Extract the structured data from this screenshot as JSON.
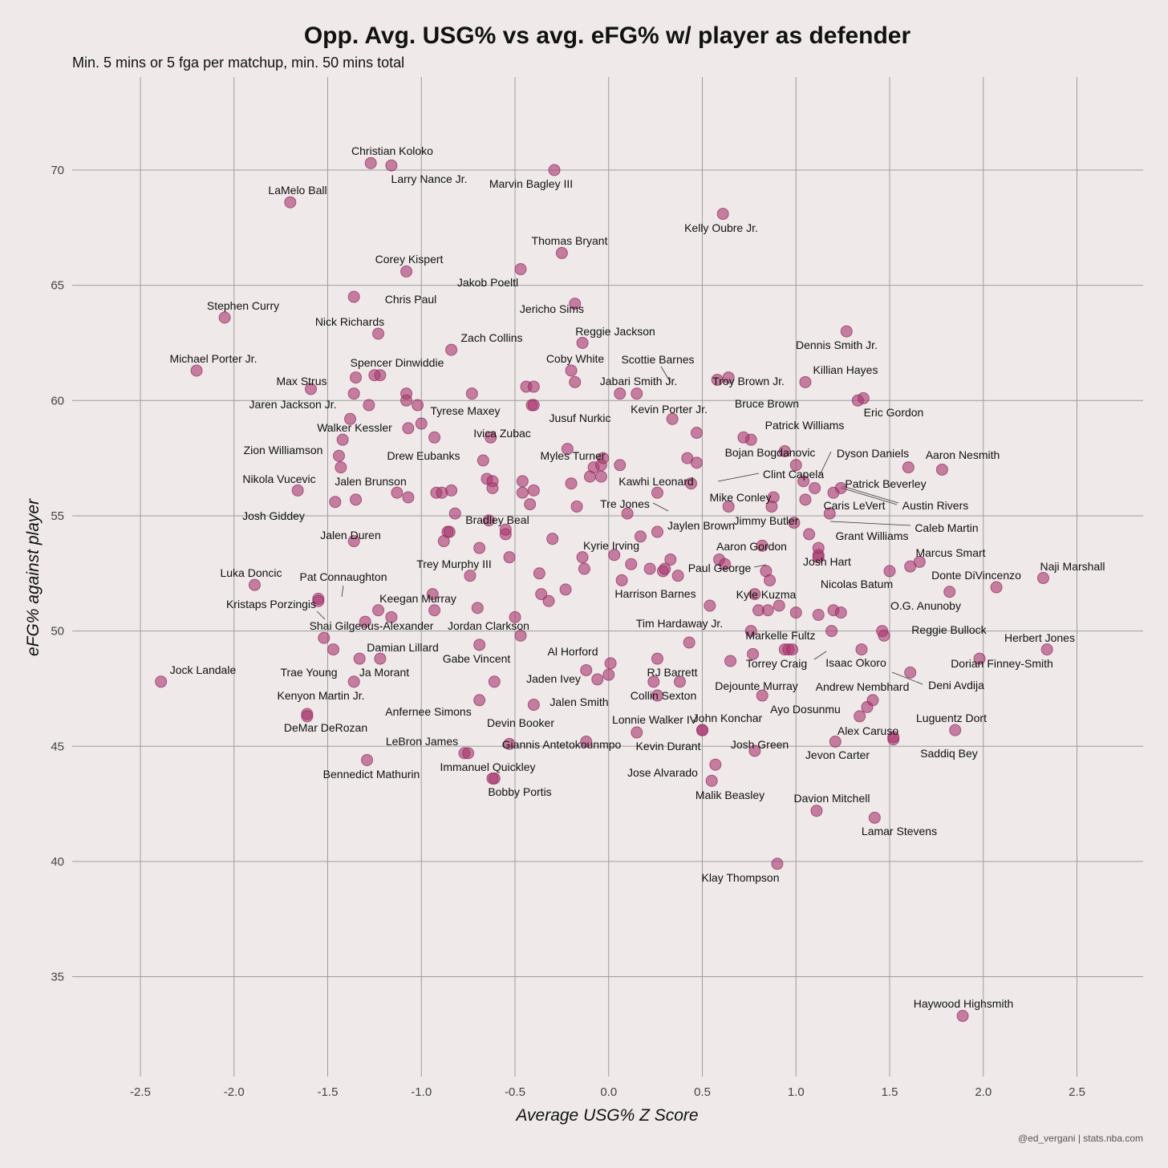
{
  "chart_data": {
    "type": "scatter",
    "title": "Opp. Avg. USG% vs avg. eFG% w/ player as defender",
    "subtitle": "Min. 5 mins or 5 fga per matchup, min. 50 mins total",
    "xlabel": "Average USG% Z Score",
    "ylabel": "eFG% against player",
    "caption": "@ed_vergani | stats.nba.com",
    "xlim": [
      -2.85,
      2.85
    ],
    "ylim": [
      30.9,
      73
    ],
    "x_ticks": [
      -2.5,
      -2.0,
      -1.5,
      -1.0,
      -0.5,
      0.0,
      0.5,
      1.0,
      1.5,
      2.0,
      2.5
    ],
    "x_tick_labels": [
      "-2.5",
      "-2.0",
      "-1.5",
      "-1.0",
      "-0.5",
      "0.0",
      "0.5",
      "1.0",
      "1.5",
      "2.0",
      "2.5"
    ],
    "y_ticks": [
      35,
      40,
      45,
      50,
      55,
      60,
      65,
      70
    ],
    "y_tick_labels": [
      "35",
      "40",
      "45",
      "50",
      "55",
      "60",
      "65",
      "70"
    ],
    "grid": true,
    "point_color": "#a8356e",
    "background": "#efe9e9",
    "labeled_points": [
      {
        "name": "Christian Koloko",
        "x": -1.27,
        "y": 70.3
      },
      {
        "name": "Larry Nance Jr.",
        "x": -1.16,
        "y": 70.2
      },
      {
        "name": "Marvin Bagley III",
        "x": -0.29,
        "y": 70.0
      },
      {
        "name": "LaMelo Ball",
        "x": -1.7,
        "y": 68.6
      },
      {
        "name": "Kelly Oubre Jr.",
        "x": 0.61,
        "y": 68.1
      },
      {
        "name": "Thomas Bryant",
        "x": -0.25,
        "y": 66.4
      },
      {
        "name": "Corey Kispert",
        "x": -1.08,
        "y": 65.6
      },
      {
        "name": "Jakob Poeltl",
        "x": -0.47,
        "y": 65.7
      },
      {
        "name": "Chris Paul",
        "x": -1.36,
        "y": 64.5
      },
      {
        "name": "Jericho Sims",
        "x": -0.18,
        "y": 64.2
      },
      {
        "name": "Stephen Curry",
        "x": -2.05,
        "y": 63.6
      },
      {
        "name": "Nick Richards",
        "x": -1.23,
        "y": 62.9
      },
      {
        "name": "Reggie Jackson",
        "x": -0.14,
        "y": 62.5
      },
      {
        "name": "Zach Collins",
        "x": -0.84,
        "y": 62.2
      },
      {
        "name": "Dennis Smith Jr.",
        "x": 1.27,
        "y": 63.0
      },
      {
        "name": "Michael Porter Jr.",
        "x": -2.2,
        "y": 61.3
      },
      {
        "name": "Spencer Dinwiddie",
        "x": -1.25,
        "y": 61.1
      },
      {
        "name": "Coby White",
        "x": -0.2,
        "y": 61.3
      },
      {
        "name": "Scottie Barnes",
        "x": 0.15,
        "y": 60.3
      },
      {
        "name": "Jabari Smith Jr.",
        "x": 0.06,
        "y": 60.3
      },
      {
        "name": "Troy Brown Jr.",
        "x": 0.64,
        "y": 61.0
      },
      {
        "name": "Killian Hayes",
        "x": 1.05,
        "y": 60.8
      },
      {
        "name": "Max Strus",
        "x": -1.59,
        "y": 60.5
      },
      {
        "name": "Jaren Jackson Jr.",
        "x": -1.36,
        "y": 60.3
      },
      {
        "name": "Tyrese Maxey",
        "x": -1.0,
        "y": 59.0
      },
      {
        "name": "Bruce Brown",
        "x": 1.36,
        "y": 60.1
      },
      {
        "name": "Eric Gordon",
        "x": 1.33,
        "y": 60.0
      },
      {
        "name": "Kevin Porter Jr.",
        "x": 0.34,
        "y": 59.2
      },
      {
        "name": "Jusuf Nurkic",
        "x": -0.4,
        "y": 59.8
      },
      {
        "name": "Walker Kessler",
        "x": -1.42,
        "y": 58.3
      },
      {
        "name": "Ivica Zubac",
        "x": -0.63,
        "y": 58.4
      },
      {
        "name": "Patrick Williams",
        "x": 0.72,
        "y": 58.4
      },
      {
        "name": "Zion Williamson",
        "x": -1.44,
        "y": 57.6
      },
      {
        "name": "Drew Eubanks",
        "x": -0.67,
        "y": 57.4
      },
      {
        "name": "Myles Turner",
        "x": -0.22,
        "y": 57.9
      },
      {
        "name": "Bojan Bogdanovic",
        "x": 0.94,
        "y": 57.8
      },
      {
        "name": "Dyson Daniels",
        "x": 1.04,
        "y": 56.5
      },
      {
        "name": "Aaron Nesmith",
        "x": 1.78,
        "y": 57.0
      },
      {
        "name": "Clint Capela",
        "x": 0.44,
        "y": 56.4
      },
      {
        "name": "Kawhi Leonard",
        "x": 0.26,
        "y": 56.0
      },
      {
        "name": "Nikola Vucevic",
        "x": -1.66,
        "y": 56.1
      },
      {
        "name": "Jalen Brunson",
        "x": -1.13,
        "y": 56.0
      },
      {
        "name": "Patrick Beverley",
        "x": 1.24,
        "y": 56.2
      },
      {
        "name": "Mike Conley",
        "x": 0.88,
        "y": 55.8
      },
      {
        "name": "Tre Jones",
        "x": 0.1,
        "y": 55.1
      },
      {
        "name": "Caris LeVert",
        "x": 1.05,
        "y": 55.7
      },
      {
        "name": "Austin Rivers",
        "x": 1.2,
        "y": 56.0
      },
      {
        "name": "Josh Giddey",
        "x": -1.46,
        "y": 55.6
      },
      {
        "name": "Jaylen Brown",
        "x": 0.64,
        "y": 55.4
      },
      {
        "name": "Jimmy Butler",
        "x": 0.87,
        "y": 55.4
      },
      {
        "name": "Caleb Martin",
        "x": 1.18,
        "y": 55.1
      },
      {
        "name": "Bradley Beal",
        "x": -0.82,
        "y": 55.1
      },
      {
        "name": "Jalen Duren",
        "x": -1.36,
        "y": 53.9
      },
      {
        "name": "Grant Williams",
        "x": 1.07,
        "y": 54.2
      },
      {
        "name": "Kyrie Irving",
        "x": 0.03,
        "y": 53.3
      },
      {
        "name": "Aaron Gordon",
        "x": 0.82,
        "y": 53.7
      },
      {
        "name": "Marcus Smart",
        "x": 1.66,
        "y": 53.0
      },
      {
        "name": "Trey Murphy III",
        "x": -0.74,
        "y": 52.4
      },
      {
        "name": "Josh Hart",
        "x": 1.12,
        "y": 53.2
      },
      {
        "name": "Paul George",
        "x": 0.62,
        "y": 52.9
      },
      {
        "name": "Naji Marshall",
        "x": 2.32,
        "y": 52.3
      },
      {
        "name": "Luka Doncic",
        "x": -1.89,
        "y": 52.0
      },
      {
        "name": "Pat Connaughton",
        "x": -1.55,
        "y": 51.4
      },
      {
        "name": "Donte DiVincenzo",
        "x": 2.07,
        "y": 51.9
      },
      {
        "name": "Nicolas Batum",
        "x": 1.5,
        "y": 52.6
      },
      {
        "name": "Harrison Barnes",
        "x": 0.07,
        "y": 52.2
      },
      {
        "name": "Kyle Kuzma",
        "x": 0.78,
        "y": 51.6
      },
      {
        "name": "Kristaps Porzingis",
        "x": -1.55,
        "y": 51.3
      },
      {
        "name": "Keegan Murray",
        "x": -0.94,
        "y": 51.6
      },
      {
        "name": "O.G. Anunoby",
        "x": 1.82,
        "y": 51.7
      },
      {
        "name": "Shai Gilgeous-Alexander",
        "x": -1.3,
        "y": 50.4
      },
      {
        "name": "Jordan Clarkson",
        "x": -0.5,
        "y": 50.6
      },
      {
        "name": "Tim Hardaway Jr.",
        "x": 0.43,
        "y": 49.5
      },
      {
        "name": "Markelle Fultz",
        "x": 0.96,
        "y": 49.2
      },
      {
        "name": "Reggie Bullock",
        "x": 1.46,
        "y": 50.0
      },
      {
        "name": "Herbert Jones",
        "x": 2.34,
        "y": 49.2
      },
      {
        "name": "Damian Lillard",
        "x": -1.22,
        "y": 48.8
      },
      {
        "name": "Gabe Vincent",
        "x": -0.69,
        "y": 49.4
      },
      {
        "name": "Al Horford",
        "x": 0.01,
        "y": 48.6
      },
      {
        "name": "Torrey Craig",
        "x": 0.98,
        "y": 49.2
      },
      {
        "name": "Isaac Okoro",
        "x": 1.35,
        "y": 49.2
      },
      {
        "name": "Dorian Finney-Smith",
        "x": 1.98,
        "y": 48.8
      },
      {
        "name": "Jock Landale",
        "x": -2.39,
        "y": 47.8
      },
      {
        "name": "Trae Young",
        "x": -1.36,
        "y": 47.8
      },
      {
        "name": "Ja Morant",
        "x": -1.33,
        "y": 48.8
      },
      {
        "name": "RJ Barrett",
        "x": 0.26,
        "y": 48.8
      },
      {
        "name": "Jaden Ivey",
        "x": -0.12,
        "y": 48.3
      },
      {
        "name": "Deni Avdija",
        "x": 1.61,
        "y": 48.2
      },
      {
        "name": "Dejounte Murray",
        "x": 0.82,
        "y": 47.2
      },
      {
        "name": "Andrew Nembhard",
        "x": 1.41,
        "y": 47.0
      },
      {
        "name": "Collin Sexton",
        "x": 0.26,
        "y": 47.2
      },
      {
        "name": "Kenyon Martin Jr.",
        "x": -1.61,
        "y": 46.4
      },
      {
        "name": "Jalen Smith",
        "x": -0.4,
        "y": 46.8
      },
      {
        "name": "Anfernee Simons",
        "x": -0.69,
        "y": 47.0
      },
      {
        "name": "Ayo Dosunmu",
        "x": 1.34,
        "y": 46.3
      },
      {
        "name": "DeMar DeRozan",
        "x": -1.61,
        "y": 46.3
      },
      {
        "name": "Devin Booker",
        "x": -0.53,
        "y": 45.1
      },
      {
        "name": "Luguentz Dort",
        "x": 1.85,
        "y": 45.7
      },
      {
        "name": "Lonnie Walker IV",
        "x": 0.15,
        "y": 45.6
      },
      {
        "name": "John Konchar",
        "x": 0.5,
        "y": 45.7
      },
      {
        "name": "Alex Caruso",
        "x": 1.52,
        "y": 45.3
      },
      {
        "name": "LeBron James",
        "x": -0.77,
        "y": 44.7
      },
      {
        "name": "Giannis Antetokounmpo",
        "x": -0.12,
        "y": 45.2
      },
      {
        "name": "Kevin Durant",
        "x": 0.5,
        "y": 45.7
      },
      {
        "name": "Josh Green",
        "x": 0.78,
        "y": 44.8
      },
      {
        "name": "Jevon Carter",
        "x": 1.21,
        "y": 45.2
      },
      {
        "name": "Saddiq Bey",
        "x": 1.52,
        "y": 45.4
      },
      {
        "name": "Immanuel Quickley",
        "x": -0.75,
        "y": 44.7
      },
      {
        "name": "Bennedict Mathurin",
        "x": -1.29,
        "y": 44.4
      },
      {
        "name": "Jose Alvarado",
        "x": 0.57,
        "y": 44.2
      },
      {
        "name": "Malik Beasley",
        "x": 0.55,
        "y": 43.5
      },
      {
        "name": "Bobby Portis",
        "x": -0.62,
        "y": 43.6
      },
      {
        "name": "Davion Mitchell",
        "x": 1.11,
        "y": 42.2
      },
      {
        "name": "Lamar Stevens",
        "x": 1.42,
        "y": 41.9
      },
      {
        "name": "Klay Thompson",
        "x": 0.9,
        "y": 39.9
      },
      {
        "name": "Haywood Highsmith",
        "x": 1.89,
        "y": 33.3
      }
    ],
    "unlabeled_points": [
      {
        "x": -1.22,
        "y": 61.1
      },
      {
        "x": -1.08,
        "y": 60.3
      },
      {
        "x": -1.02,
        "y": 59.8
      },
      {
        "x": -1.07,
        "y": 58.8
      },
      {
        "x": -1.38,
        "y": 59.2
      },
      {
        "x": -1.35,
        "y": 61.0
      },
      {
        "x": -1.08,
        "y": 60.0
      },
      {
        "x": -1.28,
        "y": 59.8
      },
      {
        "x": -0.93,
        "y": 58.4
      },
      {
        "x": -0.73,
        "y": 60.3
      },
      {
        "x": -0.44,
        "y": 60.6
      },
      {
        "x": -0.4,
        "y": 60.6
      },
      {
        "x": -0.41,
        "y": 59.8
      },
      {
        "x": -0.18,
        "y": 60.8
      },
      {
        "x": 0.58,
        "y": 60.9
      },
      {
        "x": 0.47,
        "y": 58.6
      },
      {
        "x": 0.76,
        "y": 58.3
      },
      {
        "x": 0.42,
        "y": 57.5
      },
      {
        "x": 0.47,
        "y": 57.3
      },
      {
        "x": 1.0,
        "y": 57.2
      },
      {
        "x": 1.1,
        "y": 56.2
      },
      {
        "x": 1.6,
        "y": 57.1
      },
      {
        "x": -1.43,
        "y": 57.1
      },
      {
        "x": -1.35,
        "y": 55.7
      },
      {
        "x": -1.07,
        "y": 55.8
      },
      {
        "x": -0.92,
        "y": 56.0
      },
      {
        "x": -0.89,
        "y": 56.0
      },
      {
        "x": -0.84,
        "y": 56.1
      },
      {
        "x": -0.65,
        "y": 56.6
      },
      {
        "x": -0.62,
        "y": 56.5
      },
      {
        "x": -0.62,
        "y": 56.2
      },
      {
        "x": -0.46,
        "y": 56.5
      },
      {
        "x": -0.46,
        "y": 56.0
      },
      {
        "x": -0.4,
        "y": 56.1
      },
      {
        "x": -0.42,
        "y": 55.5
      },
      {
        "x": -0.2,
        "y": 56.4
      },
      {
        "x": -0.17,
        "y": 55.4
      },
      {
        "x": -0.1,
        "y": 56.7
      },
      {
        "x": -0.08,
        "y": 57.1
      },
      {
        "x": -0.04,
        "y": 57.2
      },
      {
        "x": -0.04,
        "y": 56.7
      },
      {
        "x": -0.03,
        "y": 57.5
      },
      {
        "x": 0.06,
        "y": 57.2
      },
      {
        "x": 0.99,
        "y": 54.7
      },
      {
        "x": -0.86,
        "y": 54.3
      },
      {
        "x": -0.88,
        "y": 53.9
      },
      {
        "x": -0.85,
        "y": 54.3
      },
      {
        "x": -0.55,
        "y": 54.2
      },
      {
        "x": -0.55,
        "y": 54.4
      },
      {
        "x": -0.64,
        "y": 54.8
      },
      {
        "x": -0.69,
        "y": 53.6
      },
      {
        "x": -0.53,
        "y": 53.2
      },
      {
        "x": -0.3,
        "y": 54.0
      },
      {
        "x": 0.17,
        "y": 54.1
      },
      {
        "x": 0.26,
        "y": 54.3
      },
      {
        "x": -0.14,
        "y": 53.2
      },
      {
        "x": -0.13,
        "y": 52.7
      },
      {
        "x": -0.37,
        "y": 52.5
      },
      {
        "x": 0.12,
        "y": 52.9
      },
      {
        "x": 0.22,
        "y": 52.7
      },
      {
        "x": 0.29,
        "y": 52.6
      },
      {
        "x": 0.3,
        "y": 52.7
      },
      {
        "x": 0.33,
        "y": 53.1
      },
      {
        "x": 0.37,
        "y": 52.4
      },
      {
        "x": 0.59,
        "y": 53.1
      },
      {
        "x": 0.84,
        "y": 52.6
      },
      {
        "x": 0.86,
        "y": 52.2
      },
      {
        "x": 1.12,
        "y": 53.6
      },
      {
        "x": 1.12,
        "y": 53.3
      },
      {
        "x": 1.61,
        "y": 52.8
      },
      {
        "x": -0.23,
        "y": 51.8
      },
      {
        "x": -0.36,
        "y": 51.6
      },
      {
        "x": -0.32,
        "y": 51.3
      },
      {
        "x": -0.7,
        "y": 51.0
      },
      {
        "x": 0.54,
        "y": 51.1
      },
      {
        "x": 0.8,
        "y": 50.9
      },
      {
        "x": 0.85,
        "y": 50.9
      },
      {
        "x": 0.91,
        "y": 51.1
      },
      {
        "x": 1.0,
        "y": 50.8
      },
      {
        "x": 1.12,
        "y": 50.7
      },
      {
        "x": 1.2,
        "y": 50.9
      },
      {
        "x": 1.24,
        "y": 50.8
      },
      {
        "x": -0.93,
        "y": 50.9
      },
      {
        "x": -1.23,
        "y": 50.9
      },
      {
        "x": -1.16,
        "y": 50.6
      },
      {
        "x": -1.52,
        "y": 49.7
      },
      {
        "x": -1.47,
        "y": 49.2
      },
      {
        "x": -0.47,
        "y": 49.8
      },
      {
        "x": 0.76,
        "y": 50.0
      },
      {
        "x": 1.19,
        "y": 50.0
      },
      {
        "x": 1.47,
        "y": 49.8
      },
      {
        "x": 0.77,
        "y": 49.0
      },
      {
        "x": 0.94,
        "y": 49.2
      },
      {
        "x": 0.65,
        "y": 48.7
      },
      {
        "x": -0.61,
        "y": 47.8
      },
      {
        "x": -0.06,
        "y": 47.9
      },
      {
        "x": 0.0,
        "y": 48.1
      },
      {
        "x": 0.24,
        "y": 47.8
      },
      {
        "x": 0.38,
        "y": 47.8
      },
      {
        "x": 1.38,
        "y": 46.7
      },
      {
        "x": -0.61,
        "y": 43.6
      }
    ],
    "annotations": [
      {
        "name": "Scottie Barnes"
      },
      {
        "name": "Clint Capela"
      },
      {
        "name": "Dyson Daniels"
      },
      {
        "name": "Patrick Beverley"
      },
      {
        "name": "Tre Jones"
      },
      {
        "name": "Caleb Martin"
      },
      {
        "name": "Paul George"
      },
      {
        "name": "Pat Connaughton"
      },
      {
        "name": "Kristaps Porzingis"
      },
      {
        "name": "Torrey Craig"
      },
      {
        "name": "Deni Avdija"
      },
      {
        "name": "Austin Rivers"
      }
    ]
  }
}
